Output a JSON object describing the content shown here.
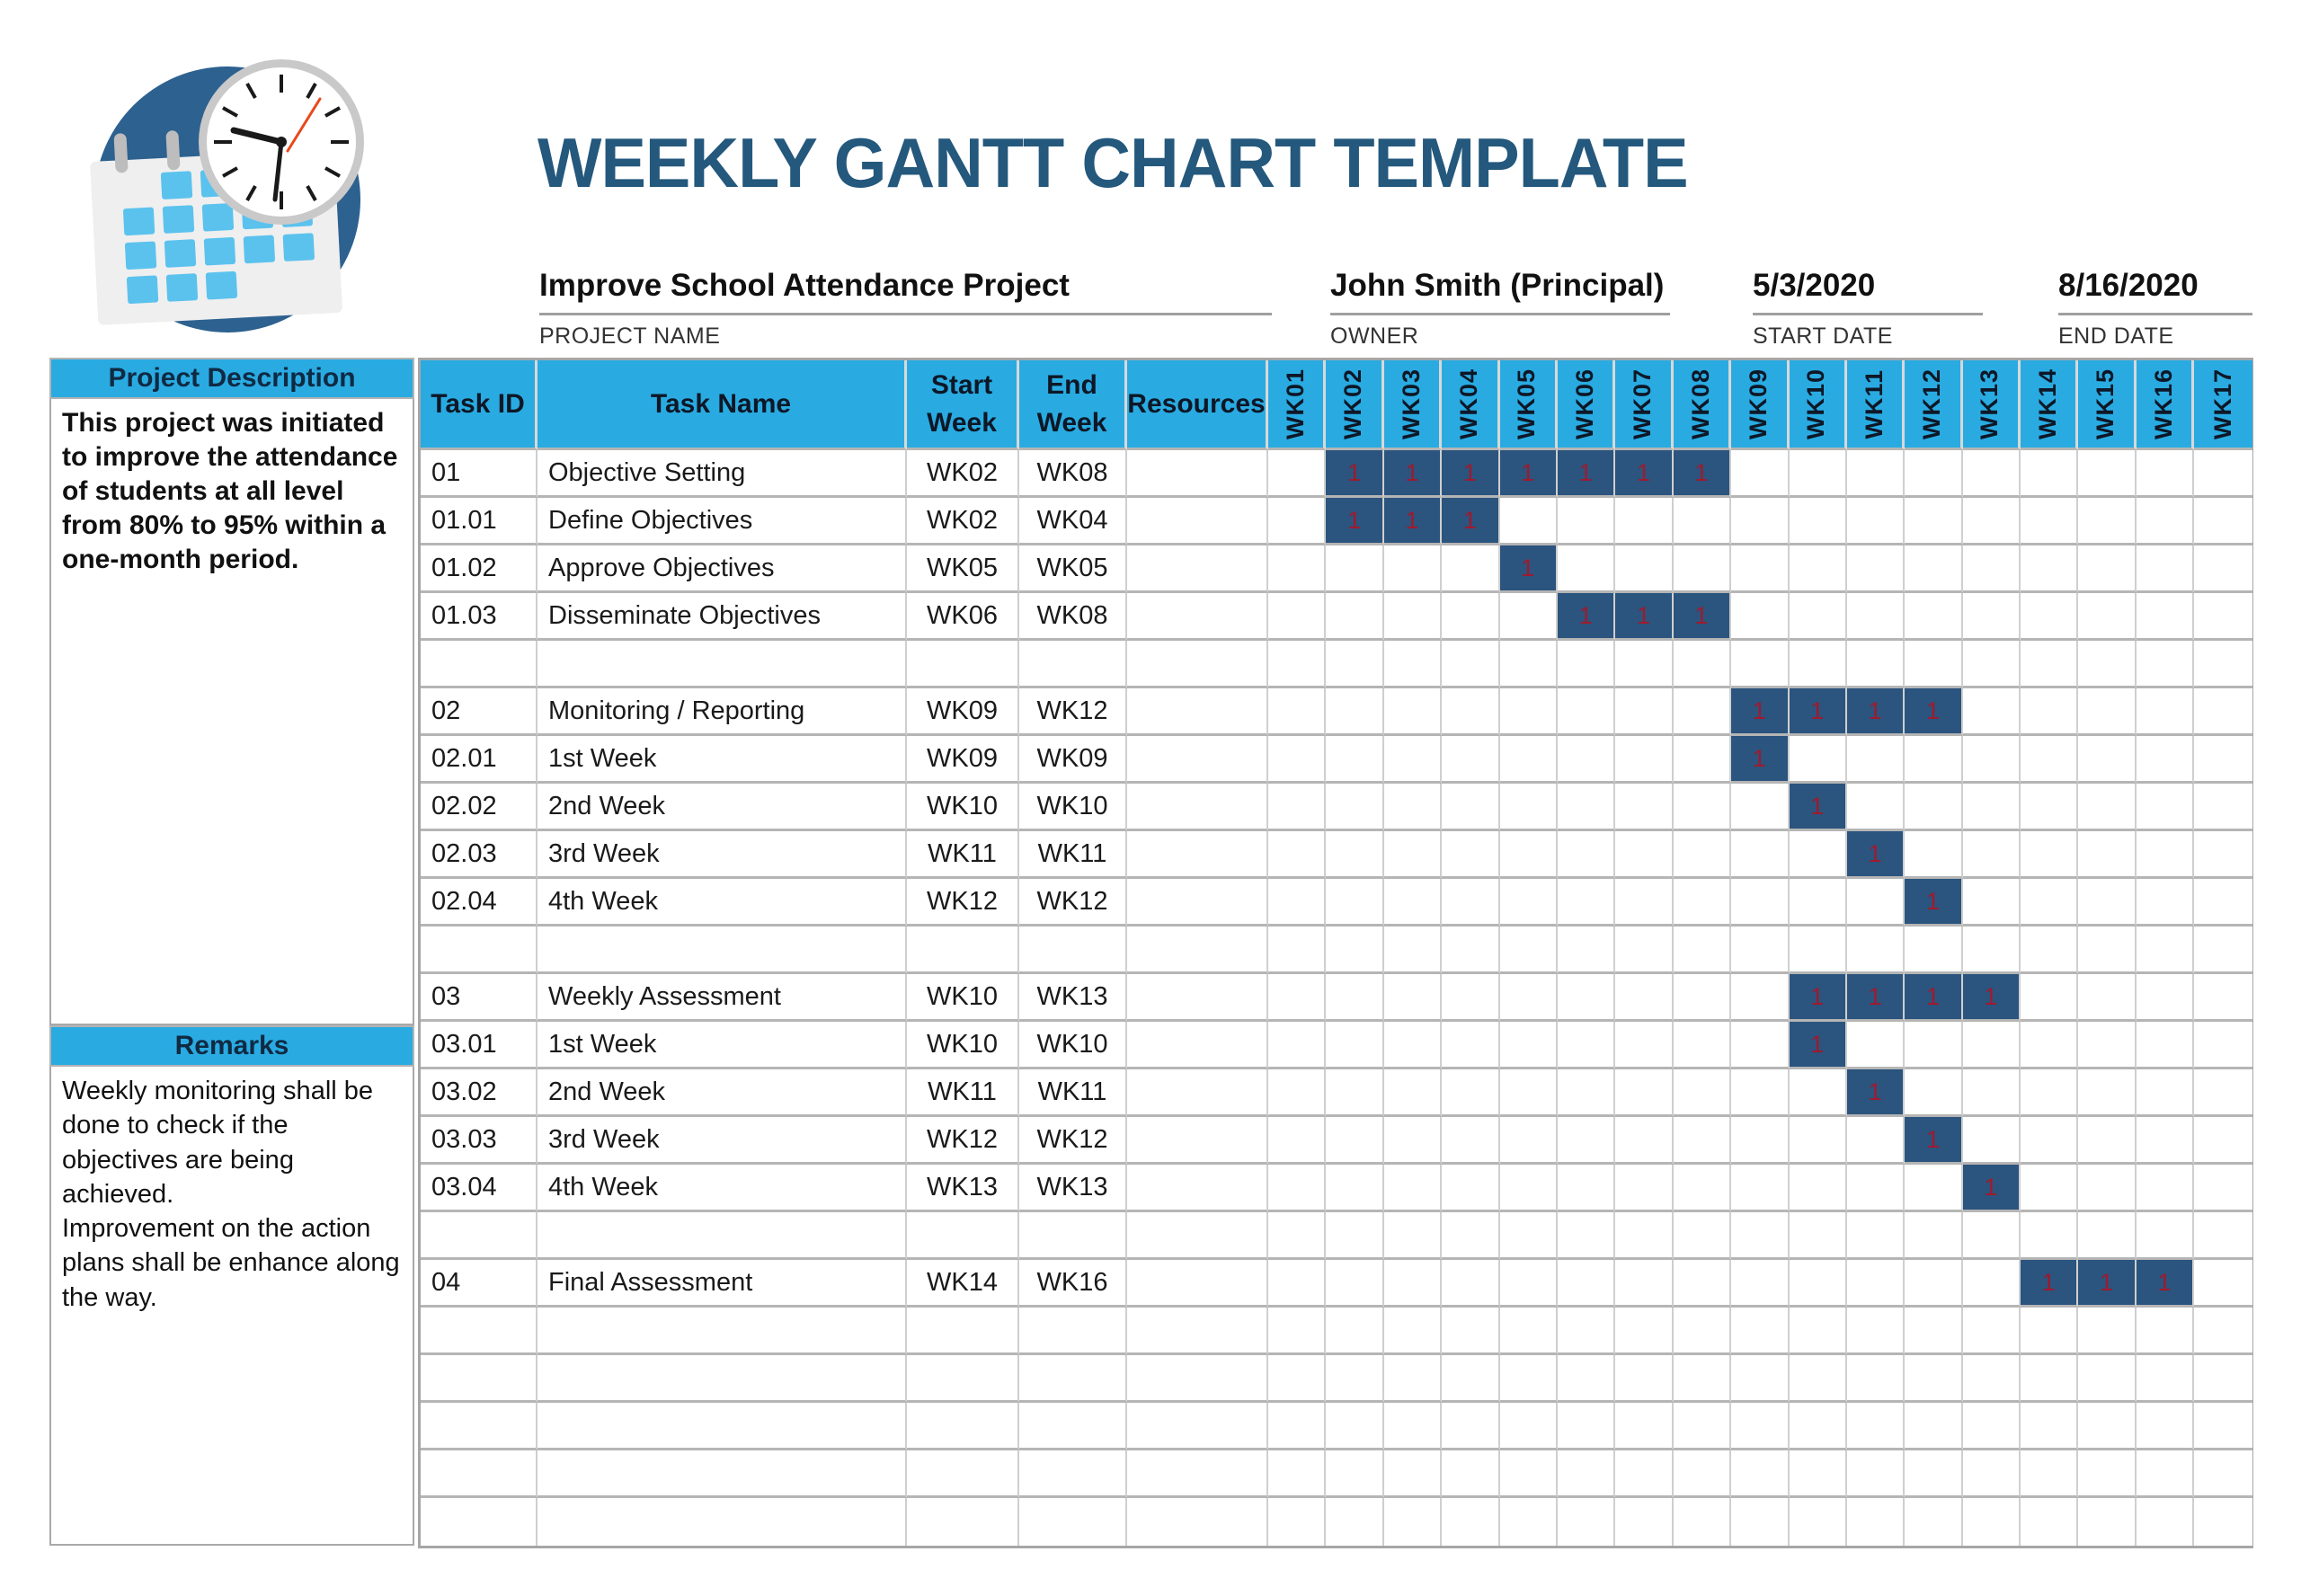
{
  "header": {
    "title": "WEEKLY GANTT CHART TEMPLATE",
    "fields": [
      {
        "value": "Improve School Attendance Project",
        "label": "PROJECT NAME"
      },
      {
        "value": "John Smith (Principal)",
        "label": "OWNER"
      },
      {
        "value": "5/3/2020",
        "label": "START DATE"
      },
      {
        "value": "8/16/2020",
        "label": "END DATE"
      }
    ]
  },
  "logo": {
    "name": "calendar-clock-logo"
  },
  "sidebar": {
    "description_title": "Project Description",
    "description_text": "This project was initiated to improve the attendance of students at all level from 80% to 95% within a one-month period.",
    "remarks_title": "Remarks",
    "remarks_text": "Weekly monitoring shall be done to check if the objectives are being achieved.\nImprovement on the action plans shall be enhance along the way."
  },
  "table": {
    "columns": [
      "Task ID",
      "Task Name",
      "Start\nWeek",
      "End\nWeek",
      "Resources"
    ],
    "weeks": [
      "WK01",
      "WK02",
      "WK03",
      "WK04",
      "WK05",
      "WK06",
      "WK07",
      "WK08",
      "WK09",
      "WK10",
      "WK11",
      "WK12",
      "WK13",
      "WK14",
      "WK15",
      "WK16",
      "WK17"
    ],
    "bar_value": "1",
    "rows": [
      {
        "id": "01",
        "name": "Objective Setting",
        "start": "WK02",
        "end": "WK08",
        "resources": "",
        "bars": [
          2,
          3,
          4,
          5,
          6,
          7,
          8
        ]
      },
      {
        "id": "01.01",
        "name": "Define Objectives",
        "start": "WK02",
        "end": "WK04",
        "resources": "",
        "bars": [
          2,
          3,
          4
        ]
      },
      {
        "id": "01.02",
        "name": "Approve Objectives",
        "start": "WK05",
        "end": "WK05",
        "resources": "",
        "bars": [
          5
        ]
      },
      {
        "id": "01.03",
        "name": "Disseminate Objectives",
        "start": "WK06",
        "end": "WK08",
        "resources": "",
        "bars": [
          6,
          7,
          8
        ]
      },
      {
        "id": "",
        "name": "",
        "start": "",
        "end": "",
        "resources": "",
        "bars": []
      },
      {
        "id": "02",
        "name": "Monitoring / Reporting",
        "start": "WK09",
        "end": "WK12",
        "resources": "",
        "bars": [
          9,
          10,
          11,
          12
        ]
      },
      {
        "id": "02.01",
        "name": "1st Week",
        "start": "WK09",
        "end": "WK09",
        "resources": "",
        "bars": [
          9
        ]
      },
      {
        "id": "02.02",
        "name": "2nd Week",
        "start": "WK10",
        "end": "WK10",
        "resources": "",
        "bars": [
          10
        ]
      },
      {
        "id": "02.03",
        "name": "3rd Week",
        "start": "WK11",
        "end": "WK11",
        "resources": "",
        "bars": [
          11
        ]
      },
      {
        "id": "02.04",
        "name": "4th Week",
        "start": "WK12",
        "end": "WK12",
        "resources": "",
        "bars": [
          12
        ]
      },
      {
        "id": "",
        "name": "",
        "start": "",
        "end": "",
        "resources": "",
        "bars": []
      },
      {
        "id": "03",
        "name": "Weekly Assessment",
        "start": "WK10",
        "end": "WK13",
        "resources": "",
        "bars": [
          10,
          11,
          12,
          13
        ]
      },
      {
        "id": "03.01",
        "name": "1st Week",
        "start": "WK10",
        "end": "WK10",
        "resources": "",
        "bars": [
          10
        ]
      },
      {
        "id": "03.02",
        "name": "2nd Week",
        "start": "WK11",
        "end": "WK11",
        "resources": "",
        "bars": [
          11
        ]
      },
      {
        "id": "03.03",
        "name": "3rd Week",
        "start": "WK12",
        "end": "WK12",
        "resources": "",
        "bars": [
          12
        ]
      },
      {
        "id": "03.04",
        "name": "4th Week",
        "start": "WK13",
        "end": "WK13",
        "resources": "",
        "bars": [
          13
        ]
      },
      {
        "id": "",
        "name": "",
        "start": "",
        "end": "",
        "resources": "",
        "bars": []
      },
      {
        "id": "04",
        "name": "Final Assessment",
        "start": "WK14",
        "end": "WK16",
        "resources": "",
        "bars": [
          14,
          15,
          16
        ]
      },
      {
        "id": "",
        "name": "",
        "start": "",
        "end": "",
        "resources": "",
        "bars": []
      },
      {
        "id": "",
        "name": "",
        "start": "",
        "end": "",
        "resources": "",
        "bars": []
      },
      {
        "id": "",
        "name": "",
        "start": "",
        "end": "",
        "resources": "",
        "bars": []
      },
      {
        "id": "",
        "name": "",
        "start": "",
        "end": "",
        "resources": "",
        "bars": []
      },
      {
        "id": "",
        "name": "",
        "start": "",
        "end": "",
        "resources": "",
        "bars": []
      }
    ]
  },
  "colors": {
    "accent_cyan": "#29ABE2",
    "bar_blue": "#2B547E",
    "bar_value_red": "#9E1B2E",
    "title_navy": "#24587C",
    "logo_circle_blue": "#2D618F",
    "logo_square_blue": "#5BC2EE",
    "grid_line": "#CFCFCF",
    "row_line": "#B5B5B5"
  },
  "chart_data": {
    "type": "table",
    "title": "WEEKLY GANTT CHART TEMPLATE",
    "subtitle": "Improve School Attendance Project",
    "x_axis_weeks": [
      "WK01",
      "WK02",
      "WK03",
      "WK04",
      "WK05",
      "WK06",
      "WK07",
      "WK08",
      "WK09",
      "WK10",
      "WK11",
      "WK12",
      "WK13",
      "WK14",
      "WK15",
      "WK16",
      "WK17"
    ],
    "bar_cell_value": 1,
    "tasks": [
      {
        "id": "01",
        "name": "Objective Setting",
        "start_week": "WK02",
        "end_week": "WK08",
        "weeks_marked": [
          2,
          3,
          4,
          5,
          6,
          7,
          8
        ]
      },
      {
        "id": "01.01",
        "name": "Define Objectives",
        "start_week": "WK02",
        "end_week": "WK04",
        "weeks_marked": [
          2,
          3,
          4
        ]
      },
      {
        "id": "01.02",
        "name": "Approve Objectives",
        "start_week": "WK05",
        "end_week": "WK05",
        "weeks_marked": [
          5
        ]
      },
      {
        "id": "01.03",
        "name": "Disseminate Objectives",
        "start_week": "WK06",
        "end_week": "WK08",
        "weeks_marked": [
          6,
          7,
          8
        ]
      },
      {
        "id": "02",
        "name": "Monitoring / Reporting",
        "start_week": "WK09",
        "end_week": "WK12",
        "weeks_marked": [
          9,
          10,
          11,
          12
        ]
      },
      {
        "id": "02.01",
        "name": "1st Week",
        "start_week": "WK09",
        "end_week": "WK09",
        "weeks_marked": [
          9
        ]
      },
      {
        "id": "02.02",
        "name": "2nd Week",
        "start_week": "WK10",
        "end_week": "WK10",
        "weeks_marked": [
          10
        ]
      },
      {
        "id": "02.03",
        "name": "3rd Week",
        "start_week": "WK11",
        "end_week": "WK11",
        "weeks_marked": [
          11
        ]
      },
      {
        "id": "02.04",
        "name": "4th Week",
        "start_week": "WK12",
        "end_week": "WK12",
        "weeks_marked": [
          12
        ]
      },
      {
        "id": "03",
        "name": "Weekly Assessment",
        "start_week": "WK10",
        "end_week": "WK13",
        "weeks_marked": [
          10,
          11,
          12,
          13
        ]
      },
      {
        "id": "03.01",
        "name": "1st Week",
        "start_week": "WK10",
        "end_week": "WK10",
        "weeks_marked": [
          10
        ]
      },
      {
        "id": "03.02",
        "name": "2nd Week",
        "start_week": "WK11",
        "end_week": "WK11",
        "weeks_marked": [
          11
        ]
      },
      {
        "id": "03.03",
        "name": "3rd Week",
        "start_week": "WK12",
        "end_week": "WK12",
        "weeks_marked": [
          12
        ]
      },
      {
        "id": "03.04",
        "name": "4th Week",
        "start_week": "WK13",
        "end_week": "WK13",
        "weeks_marked": [
          13
        ]
      },
      {
        "id": "04",
        "name": "Final Assessment",
        "start_week": "WK14",
        "end_week": "WK16",
        "weeks_marked": [
          14,
          15,
          16
        ]
      }
    ],
    "project": {
      "name": "Improve School Attendance Project",
      "owner": "John Smith (Principal)",
      "start_date": "5/3/2020",
      "end_date": "8/16/2020"
    },
    "legend_position": "none",
    "grid": true
  }
}
